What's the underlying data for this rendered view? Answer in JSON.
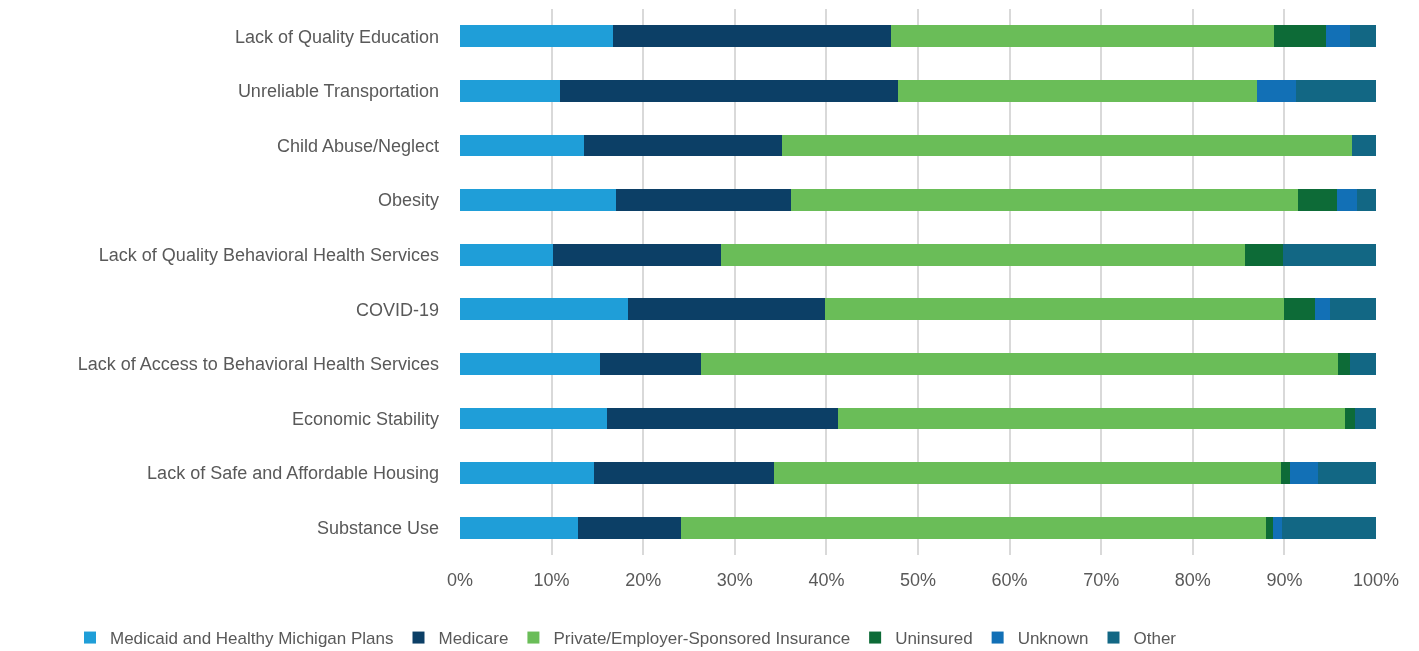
{
  "chart_data": {
    "type": "bar",
    "orientation": "horizontal",
    "stacked": true,
    "categories": [
      "Lack of Quality Education",
      "Unreliable Transportation",
      "Child Abuse/Neglect",
      "Obesity",
      "Lack of Quality Behavioral Health Services",
      "COVID-19",
      "Lack of Access to Behavioral Health Services",
      "Economic Stability",
      "Lack of Safe and Affordable Housing",
      "Substance Use"
    ],
    "series": [
      {
        "name": "Medicaid and Healthy Michigan Plans",
        "color": "#1f9ed8",
        "values": [
          16.7,
          10.9,
          13.5,
          17.0,
          10.2,
          18.3,
          15.3,
          16.1,
          14.6,
          12.9
        ]
      },
      {
        "name": "Medicare",
        "color": "#0c3f66",
        "values": [
          30.4,
          36.9,
          21.6,
          19.1,
          18.3,
          21.6,
          11.0,
          25.2,
          19.7,
          11.2
        ]
      },
      {
        "name": "Private/Employer-Sponsored Insurance",
        "color": "#6abd58",
        "values": [
          41.8,
          39.2,
          62.3,
          55.4,
          57.2,
          50.1,
          69.5,
          55.3,
          55.3,
          63.9
        ]
      },
      {
        "name": "Uninsured",
        "color": "#0d6b37",
        "values": [
          5.6,
          0,
          0,
          4.2,
          4.1,
          3.3,
          1.4,
          1.1,
          1.0,
          0.8
        ]
      },
      {
        "name": "Unknown",
        "color": "#1270b6",
        "values": [
          2.7,
          4.3,
          0,
          2.2,
          0,
          1.7,
          0,
          0,
          3.1,
          0.9
        ]
      },
      {
        "name": "Other",
        "color": "#126784",
        "values": [
          2.8,
          8.7,
          2.6,
          2.1,
          10.2,
          5.0,
          2.8,
          2.3,
          6.3,
          10.3
        ]
      }
    ],
    "xlim": [
      0,
      100
    ],
    "xticks": [
      {
        "value": 0,
        "label": "0%"
      },
      {
        "value": 10,
        "label": "10%"
      },
      {
        "value": 20,
        "label": "20%"
      },
      {
        "value": 30,
        "label": "30%"
      },
      {
        "value": 40,
        "label": "40%"
      },
      {
        "value": 50,
        "label": "50%"
      },
      {
        "value": 60,
        "label": "60%"
      },
      {
        "value": 70,
        "label": "70%"
      },
      {
        "value": 80,
        "label": "80%"
      },
      {
        "value": 90,
        "label": "90%"
      },
      {
        "value": 100,
        "label": "100%"
      }
    ],
    "grid": "x",
    "legend": "bottom"
  }
}
